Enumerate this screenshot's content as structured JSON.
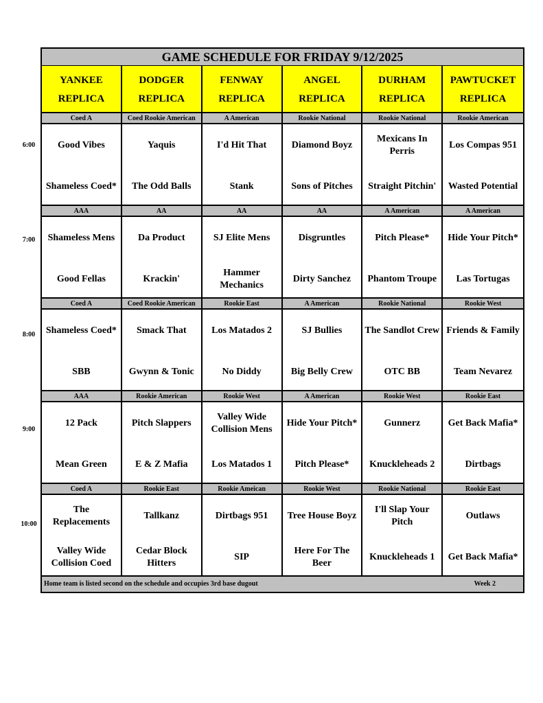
{
  "title": "GAME SCHEDULE FOR FRIDAY 9/12/2025",
  "fields": [
    [
      "YANKEE",
      "REPLICA"
    ],
    [
      "DODGER",
      "REPLICA"
    ],
    [
      "FENWAY",
      "REPLICA"
    ],
    [
      "ANGEL",
      "REPLICA"
    ],
    [
      "DURHAM",
      "REPLICA"
    ],
    [
      "PAWTUCKET",
      "REPLICA"
    ]
  ],
  "slots": [
    {
      "time": "6:00",
      "divisions": [
        "Coed A",
        "Coed Rookie American",
        "A American",
        "Rookie National",
        "Rookie National",
        "Rookie American"
      ],
      "games": [
        [
          "Good Vibes",
          "Shameless Coed*"
        ],
        [
          "Yaquis",
          "The Odd Balls"
        ],
        [
          "I'd Hit That",
          "Stank"
        ],
        [
          "Diamond Boyz",
          "Sons of Pitches"
        ],
        [
          "Mexicans In Perris",
          "Straight Pitchin'"
        ],
        [
          "Los Compas 951",
          "Wasted Potential"
        ]
      ]
    },
    {
      "time": "7:00",
      "divisions": [
        "AAA",
        "AA",
        "AA",
        "AA",
        "A American",
        "A American"
      ],
      "games": [
        [
          "Shameless Mens",
          "Good Fellas"
        ],
        [
          "Da Product",
          "Krackin'"
        ],
        [
          "SJ Elite Mens",
          "Hammer Mechanics"
        ],
        [
          "Disgruntles",
          "Dirty Sanchez"
        ],
        [
          "Pitch Please*",
          "Phantom Troupe"
        ],
        [
          "Hide Your Pitch*",
          "Las Tortugas"
        ]
      ]
    },
    {
      "time": "8:00",
      "divisions": [
        "Coed A",
        "Coed Rookie American",
        "Rookie East",
        "A American",
        "Rookie National",
        "Rookie West"
      ],
      "games": [
        [
          "Shameless Coed*",
          "SBB"
        ],
        [
          "Smack That",
          "Gwynn & Tonic"
        ],
        [
          "Los Matados 2",
          "No Diddy"
        ],
        [
          "SJ Bullies",
          "Big Belly Crew"
        ],
        [
          "The Sandlot Crew",
          "OTC BB"
        ],
        [
          "Friends & Family",
          "Team Nevarez"
        ]
      ]
    },
    {
      "time": "9:00",
      "divisions": [
        "AAA",
        "Rookie American",
        "Rookie West",
        "A American",
        "Rookie West",
        "Rookie East"
      ],
      "games": [
        [
          "12 Pack",
          "Mean Green"
        ],
        [
          "Pitch Slappers",
          "E & Z Mafia"
        ],
        [
          "Valley Wide Collision Mens",
          "Los Matados 1"
        ],
        [
          "Hide Your Pitch*",
          "Pitch Please*"
        ],
        [
          "Gunnerz",
          "Knuckleheads 2"
        ],
        [
          "Get Back Mafia*",
          "Dirtbags"
        ]
      ]
    },
    {
      "time": "10:00",
      "divisions": [
        "Coed A",
        "Rookie East",
        "Rookie Ameican",
        "Rookie West",
        "Rookie National",
        "Rookie East"
      ],
      "games": [
        [
          "The Replacements",
          "Valley Wide Collision Coed"
        ],
        [
          "Tallkanz",
          "Cedar Block Hitters"
        ],
        [
          "Dirtbags 951",
          "SIP"
        ],
        [
          "Tree House Boyz",
          "Here For The Beer"
        ],
        [
          "I'll Slap Your Pitch",
          "Knuckleheads 1"
        ],
        [
          "Outlaws",
          "Get Back Mafia*"
        ]
      ]
    }
  ],
  "footer": {
    "note": "Home team is listed second on the schedule and occupies 3rd base dugout",
    "week": "Week 2"
  },
  "colors": {
    "header_bg": "#ffff00",
    "division_bg": "#c0c0c0",
    "border": "#000000"
  }
}
